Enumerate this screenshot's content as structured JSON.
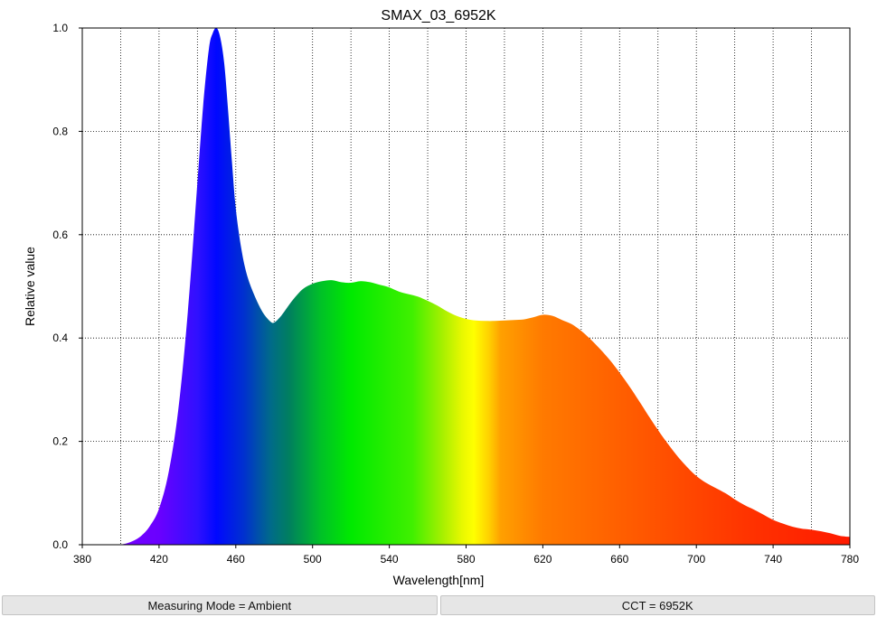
{
  "chart_data": {
    "type": "area",
    "title": "SMAX_03_6952K",
    "xlabel": "Wavelength[nm]",
    "ylabel": "Relative value",
    "xlim": [
      380,
      780
    ],
    "ylim": [
      0,
      1.0
    ],
    "x_ticks": [
      380,
      420,
      460,
      500,
      540,
      580,
      620,
      660,
      700,
      740,
      780
    ],
    "y_ticks": [
      0.0,
      0.2,
      0.4,
      0.6,
      0.8,
      1.0
    ],
    "x_tick_labels": [
      "380",
      "420",
      "460",
      "500",
      "540",
      "580",
      "620",
      "660",
      "700",
      "740",
      "780"
    ],
    "y_tick_labels": [
      "0.0",
      "0.2",
      "0.4",
      "0.6",
      "0.8",
      "1.0"
    ],
    "grid": true,
    "grid_style": "dotted",
    "fill": "visible-spectrum-gradient",
    "x": [
      400,
      405,
      410,
      415,
      420,
      425,
      430,
      435,
      440,
      443,
      446,
      448,
      450,
      452,
      454,
      456,
      458,
      460,
      463,
      466,
      470,
      474,
      478,
      480,
      483,
      486,
      490,
      495,
      500,
      505,
      510,
      515,
      520,
      525,
      530,
      535,
      540,
      545,
      550,
      555,
      560,
      565,
      570,
      575,
      580,
      585,
      590,
      595,
      600,
      605,
      610,
      615,
      620,
      625,
      630,
      635,
      640,
      645,
      650,
      655,
      660,
      665,
      670,
      675,
      680,
      685,
      690,
      695,
      700,
      705,
      710,
      715,
      720,
      725,
      730,
      735,
      740,
      745,
      750,
      755,
      760,
      765,
      770,
      775,
      780
    ],
    "y": [
      0.0,
      0.005,
      0.015,
      0.035,
      0.07,
      0.14,
      0.26,
      0.45,
      0.7,
      0.85,
      0.96,
      0.99,
      1.0,
      0.98,
      0.93,
      0.84,
      0.74,
      0.65,
      0.57,
      0.52,
      0.48,
      0.45,
      0.432,
      0.43,
      0.44,
      0.455,
      0.475,
      0.495,
      0.505,
      0.51,
      0.512,
      0.508,
      0.507,
      0.51,
      0.508,
      0.503,
      0.498,
      0.49,
      0.485,
      0.48,
      0.472,
      0.463,
      0.452,
      0.443,
      0.437,
      0.434,
      0.433,
      0.433,
      0.434,
      0.435,
      0.436,
      0.44,
      0.445,
      0.443,
      0.435,
      0.427,
      0.414,
      0.397,
      0.378,
      0.357,
      0.333,
      0.307,
      0.279,
      0.25,
      0.222,
      0.196,
      0.172,
      0.151,
      0.133,
      0.12,
      0.11,
      0.1,
      0.088,
      0.077,
      0.068,
      0.058,
      0.048,
      0.041,
      0.035,
      0.031,
      0.029,
      0.026,
      0.022,
      0.017,
      0.015
    ]
  },
  "status_bar": {
    "measuring_mode": "Measuring Mode = Ambient",
    "cct": "CCT = 6952K"
  }
}
